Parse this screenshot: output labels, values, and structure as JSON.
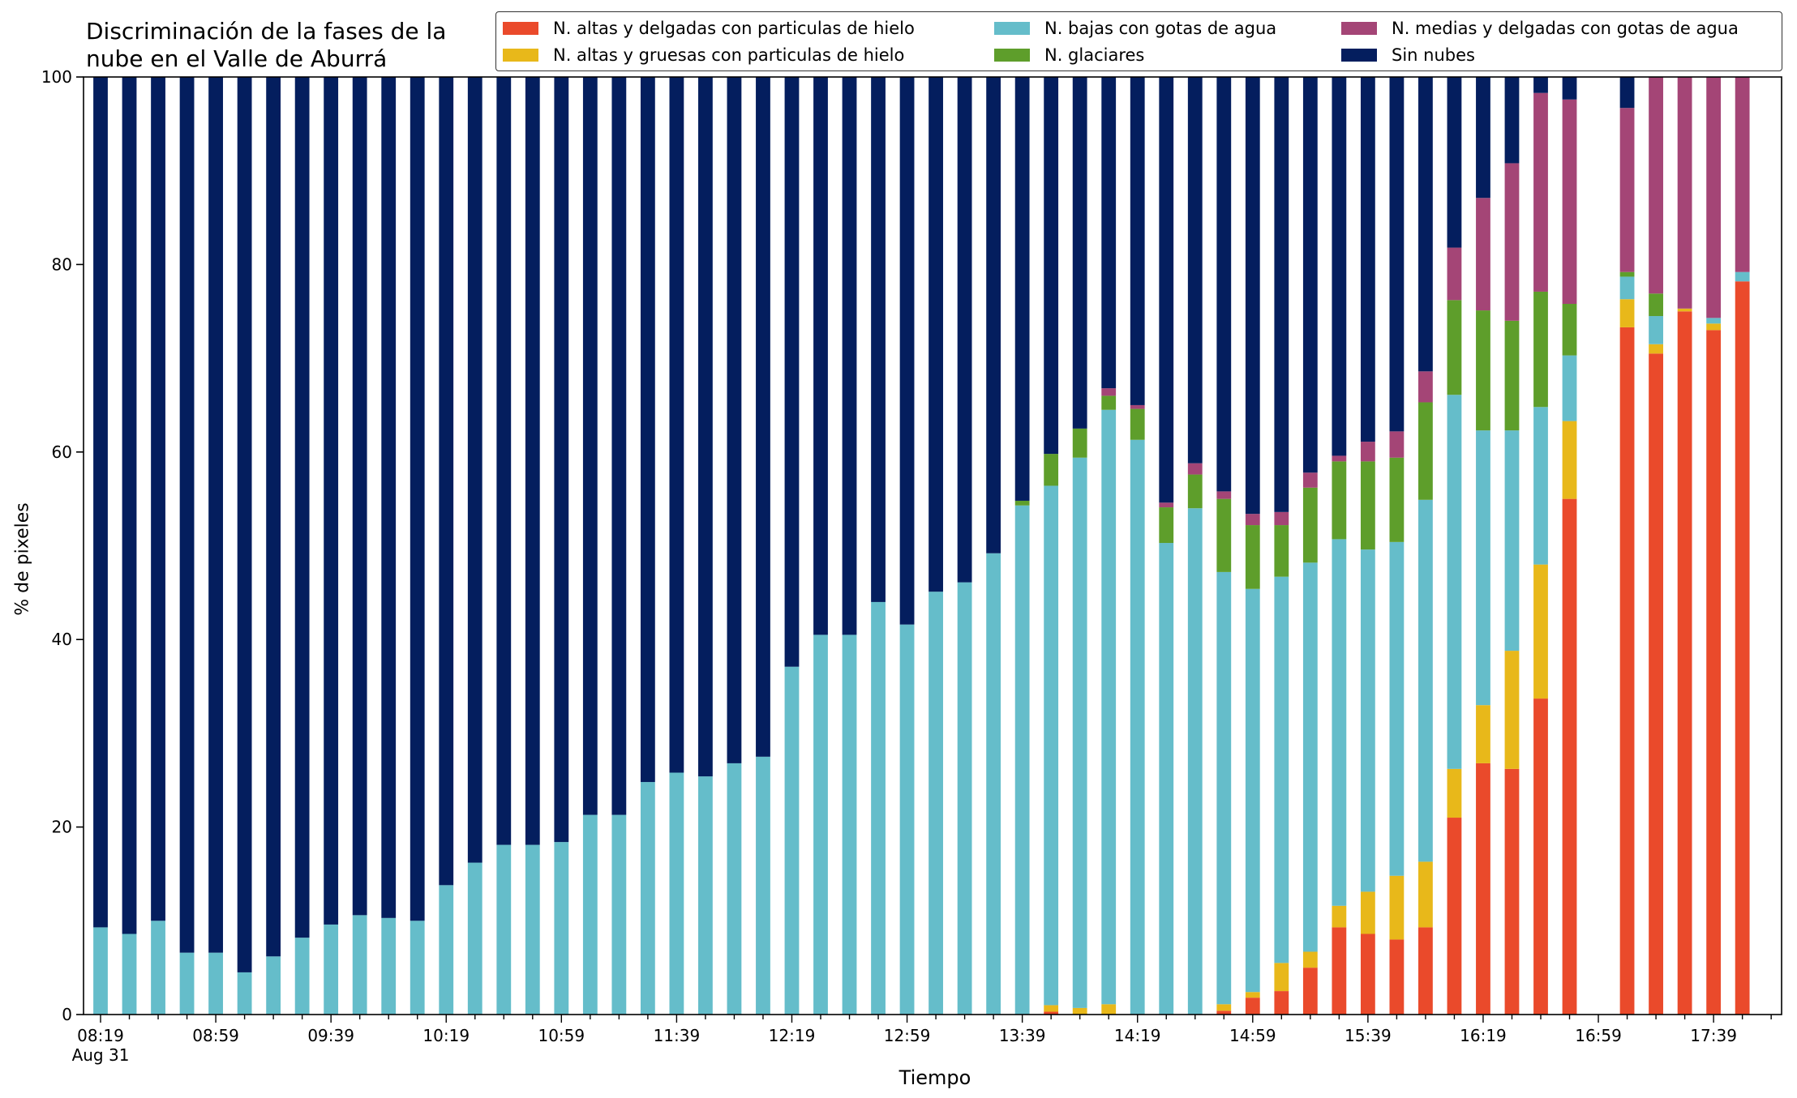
{
  "chart_data": {
    "type": "bar",
    "stacked": true,
    "title": "Discriminación de la fases de la\nnube en el Valle de Aburrá",
    "xlabel": "Tiempo",
    "ylabel": "% de pixeles",
    "ylim": [
      0,
      100
    ],
    "yticks": [
      "0",
      "20",
      "40",
      "60",
      "80",
      "100"
    ],
    "grid": false,
    "legend_position": "top",
    "xtick_labels": [
      {
        "label": "08:19",
        "index": 0
      },
      {
        "label": "08:59",
        "index": 4
      },
      {
        "label": "09:39",
        "index": 8
      },
      {
        "label": "10:19",
        "index": 12
      },
      {
        "label": "10:59",
        "index": 16
      },
      {
        "label": "11:39",
        "index": 20
      },
      {
        "label": "12:19",
        "index": 24
      },
      {
        "label": "12:59",
        "index": 28
      },
      {
        "label": "13:39",
        "index": 32
      },
      {
        "label": "14:19",
        "index": 36
      },
      {
        "label": "14:59",
        "index": 40
      },
      {
        "label": "15:39",
        "index": 44
      },
      {
        "label": "16:19",
        "index": 48
      },
      {
        "label": "16:59",
        "index": 52
      },
      {
        "label": "17:39",
        "index": 56
      }
    ],
    "xtick_sublabel": {
      "label": "Aug 31",
      "index": 0
    },
    "categories": [
      "08:19",
      "08:29",
      "08:39",
      "08:49",
      "08:59",
      "09:09",
      "09:19",
      "09:29",
      "09:39",
      "09:49",
      "09:59",
      "10:09",
      "10:19",
      "10:29",
      "10:39",
      "10:49",
      "10:59",
      "11:09",
      "11:19",
      "11:29",
      "11:39",
      "11:49",
      "11:59",
      "12:09",
      "12:19",
      "12:29",
      "12:39",
      "12:49",
      "12:59",
      "13:09",
      "13:19",
      "13:29",
      "13:39",
      "13:49",
      "13:59",
      "14:09",
      "14:19",
      "14:29",
      "14:39",
      "14:49",
      "14:59",
      "15:09",
      "15:19",
      "15:29",
      "15:39",
      "15:49",
      "15:59",
      "16:09",
      "16:19",
      "16:29",
      "16:39",
      "16:49",
      "16:59",
      "17:09",
      "17:19",
      "17:29",
      "17:39",
      "17:49"
    ],
    "series": [
      {
        "name": "N. altas y delgadas con particulas de hielo",
        "color": "#ea4a2b",
        "values": [
          0,
          0,
          0,
          0,
          0,
          0,
          0,
          0,
          0,
          0,
          0,
          0,
          0,
          0,
          0,
          0,
          0,
          0,
          0,
          0,
          0,
          0,
          0,
          0,
          0,
          0,
          0,
          0,
          0,
          0,
          0,
          0,
          0,
          0.3,
          0,
          0,
          0,
          0,
          0,
          0.4,
          1.8,
          2.5,
          5,
          9.3,
          8.6,
          8,
          9.3,
          21,
          26.8,
          26.2,
          33.7,
          55,
          null,
          73.3,
          70.5,
          75,
          73,
          78.2
        ]
      },
      {
        "name": "N. altas y gruesas con particulas de hielo",
        "color": "#e8b81a",
        "values": [
          0,
          0,
          0,
          0,
          0,
          0,
          0,
          0,
          0,
          0,
          0,
          0,
          0,
          0,
          0,
          0,
          0,
          0,
          0,
          0,
          0,
          0,
          0,
          0,
          0,
          0,
          0,
          0,
          0,
          0,
          0,
          0,
          0,
          0.7,
          0.7,
          1.1,
          0,
          0,
          0,
          0.7,
          0.6,
          3,
          1.7,
          2.3,
          4.5,
          6.8,
          7,
          5.2,
          6.2,
          12.6,
          14.3,
          8.3,
          null,
          3,
          1,
          0.3,
          0.7,
          0
        ]
      },
      {
        "name": "N. bajas con gotas de agua",
        "color": "#65bdca",
        "values": [
          9.3,
          8.6,
          10,
          6.6,
          6.6,
          4.5,
          6.2,
          8.2,
          9.6,
          10.6,
          10.3,
          10,
          13.8,
          16.2,
          18.1,
          18.1,
          18.4,
          21.3,
          21.3,
          24.8,
          25.8,
          25.4,
          26.8,
          27.5,
          37.1,
          40.5,
          40.5,
          44,
          41.6,
          45.1,
          46.1,
          49.2,
          54.3,
          55.4,
          58.7,
          63.4,
          61.3,
          50.3,
          54,
          46.1,
          43,
          41.2,
          41.5,
          39.1,
          36.5,
          35.6,
          38.6,
          39.9,
          29.3,
          23.5,
          16.8,
          7,
          null,
          2.4,
          3,
          0,
          0.6,
          1
        ]
      },
      {
        "name": "N. glaciares",
        "color": "#5e9e2b",
        "values": [
          0,
          0,
          0,
          0,
          0,
          0,
          0,
          0,
          0,
          0,
          0,
          0,
          0,
          0,
          0,
          0,
          0,
          0,
          0,
          0,
          0,
          0,
          0,
          0,
          0,
          0,
          0,
          0,
          0,
          0,
          0,
          0,
          0.5,
          3.4,
          3.1,
          1.5,
          3.3,
          3.8,
          3.6,
          7.8,
          6.8,
          5.5,
          8,
          8.3,
          9.4,
          9,
          10.4,
          10.1,
          12.8,
          11.7,
          12.3,
          5.5,
          null,
          0.5,
          2.4,
          0,
          0,
          0
        ]
      },
      {
        "name": "N. medias y delgadas con gotas de agua",
        "color": "#a44576",
        "values": [
          0,
          0,
          0,
          0,
          0,
          0,
          0,
          0,
          0,
          0,
          0,
          0,
          0,
          0,
          0,
          0,
          0,
          0,
          0,
          0,
          0,
          0,
          0,
          0,
          0,
          0,
          0,
          0,
          0,
          0,
          0,
          0,
          0,
          0,
          0,
          0.8,
          0.4,
          0.5,
          1.2,
          0.8,
          1.2,
          1.4,
          1.6,
          0.6,
          2.1,
          2.8,
          3.3,
          5.6,
          12,
          16.8,
          21.2,
          21.8,
          null,
          17.5,
          23.1,
          24.7,
          25.7,
          20.8
        ]
      },
      {
        "name": "Sin nubes",
        "color": "#041e5e",
        "values": [
          90.7,
          91.4,
          90,
          93.4,
          93.4,
          95.5,
          93.8,
          91.8,
          90.4,
          89.4,
          89.7,
          90,
          86.2,
          83.8,
          81.9,
          81.9,
          81.6,
          78.7,
          78.7,
          75.2,
          74.2,
          74.6,
          73.2,
          72.5,
          62.9,
          59.5,
          59.5,
          56,
          58.4,
          54.9,
          53.9,
          50.8,
          45.2,
          40.2,
          37.5,
          33.2,
          35,
          45.4,
          41.2,
          44.2,
          46.6,
          46.4,
          42.2,
          40.4,
          38.9,
          37.8,
          31.4,
          18.2,
          12.9,
          9.2,
          1.7,
          2.4,
          null,
          3.3,
          0,
          0,
          0,
          0
        ]
      }
    ]
  }
}
